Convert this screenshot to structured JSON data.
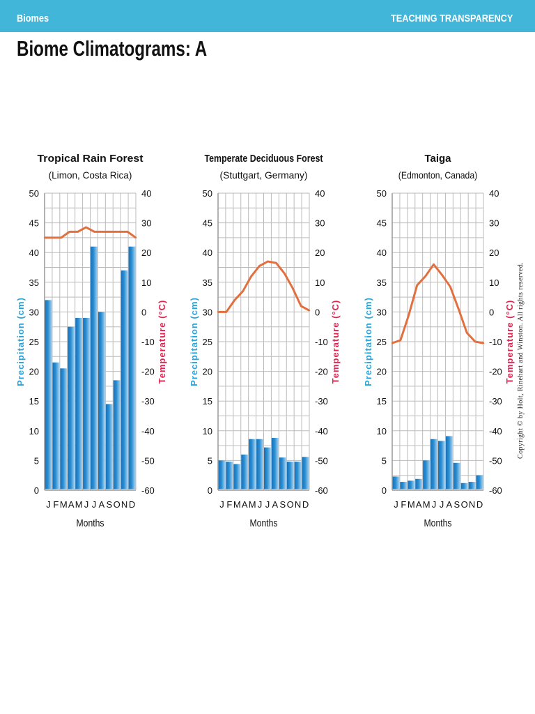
{
  "header": {
    "left": "Biomes",
    "right": "TEACHING TRANSPARENCY"
  },
  "page_title": "Biome Climatograms: A",
  "copyright": "Copyright © by Holt, Rinehart and Winston. All rights reserved.",
  "colors": {
    "header": "#41b6d8",
    "bars": "#1f7fc4",
    "temperature_line": "#e2703f",
    "precip_label": "#2aa3d8",
    "temp_label": "#e0234e"
  },
  "chart_data": [
    {
      "type": "bar+line",
      "title": "Tropical Rain Forest",
      "subtitle": "(Limon, Costa Rica)",
      "categories": [
        "J",
        "F",
        "M",
        "A",
        "M",
        "J",
        "J",
        "A",
        "S",
        "O",
        "N",
        "D"
      ],
      "xlabel": "Months",
      "ylabel": "Precipitation (cm)",
      "y2label": "Temperature (°C)",
      "ylim": [
        0,
        50
      ],
      "y2lim": [
        -60,
        40
      ],
      "yticks": [
        0,
        5,
        10,
        15,
        20,
        25,
        30,
        35,
        40,
        45,
        50
      ],
      "y2ticks": [
        -60,
        -50,
        -40,
        -30,
        -20,
        -10,
        0,
        10,
        20,
        30,
        40
      ],
      "grid": true,
      "series": [
        {
          "name": "Precipitation (cm)",
          "type": "bar",
          "values": [
            32,
            21.5,
            20.5,
            27.5,
            29,
            29,
            41,
            30,
            14.5,
            18.5,
            37,
            41
          ]
        },
        {
          "name": "Temperature (°C)",
          "type": "line",
          "values": [
            25,
            25,
            25,
            27,
            27,
            28.5,
            27,
            27,
            27,
            27,
            27,
            25
          ]
        }
      ]
    },
    {
      "type": "bar+line",
      "title": "Temperate Deciduous Forest",
      "subtitle": "(Stuttgart, Germany)",
      "categories": [
        "J",
        "F",
        "M",
        "A",
        "M",
        "J",
        "J",
        "A",
        "S",
        "O",
        "N",
        "D"
      ],
      "xlabel": "Months",
      "ylabel": "Precipitation (cm)",
      "y2label": "Temperature (°C)",
      "ylim": [
        0,
        50
      ],
      "y2lim": [
        -60,
        40
      ],
      "yticks": [
        0,
        5,
        10,
        15,
        20,
        25,
        30,
        35,
        40,
        45,
        50
      ],
      "y2ticks": [
        -60,
        -50,
        -40,
        -30,
        -20,
        -10,
        0,
        10,
        20,
        30,
        40
      ],
      "grid": true,
      "series": [
        {
          "name": "Precipitation (cm)",
          "type": "bar",
          "values": [
            5,
            4.8,
            4.4,
            6,
            8.6,
            8.6,
            7.2,
            8.8,
            5.5,
            4.8,
            4.8,
            5.6
          ]
        },
        {
          "name": "Temperature (°C)",
          "type": "line",
          "values": [
            0,
            0,
            4,
            7,
            12,
            15.5,
            17,
            16.5,
            13,
            8,
            2,
            0.5
          ]
        }
      ]
    },
    {
      "type": "bar+line",
      "title": "Taiga",
      "subtitle": "(Edmonton, Canada)",
      "categories": [
        "J",
        "F",
        "M",
        "A",
        "M",
        "J",
        "J",
        "A",
        "S",
        "O",
        "N",
        "D"
      ],
      "xlabel": "Months",
      "ylabel": "Precipitation (cm)",
      "y2label": "Temperature (°C)",
      "ylim": [
        0,
        50
      ],
      "y2lim": [
        -60,
        40
      ],
      "yticks": [
        0,
        5,
        10,
        15,
        20,
        25,
        30,
        35,
        40,
        45,
        50
      ],
      "y2ticks": [
        -60,
        -50,
        -40,
        -30,
        -20,
        -10,
        0,
        10,
        20,
        30,
        40
      ],
      "grid": true,
      "series": [
        {
          "name": "Precipitation (cm)",
          "type": "bar",
          "values": [
            2.3,
            1.4,
            1.6,
            1.9,
            5,
            8.6,
            8.3,
            9.1,
            4.6,
            1.2,
            1.4,
            2.5
          ]
        },
        {
          "name": "Temperature (°C)",
          "type": "line",
          "values": [
            -10.5,
            -9.5,
            -1,
            9,
            12,
            16,
            12.5,
            8.5,
            1,
            -7,
            -10,
            -10.5
          ]
        }
      ]
    }
  ]
}
